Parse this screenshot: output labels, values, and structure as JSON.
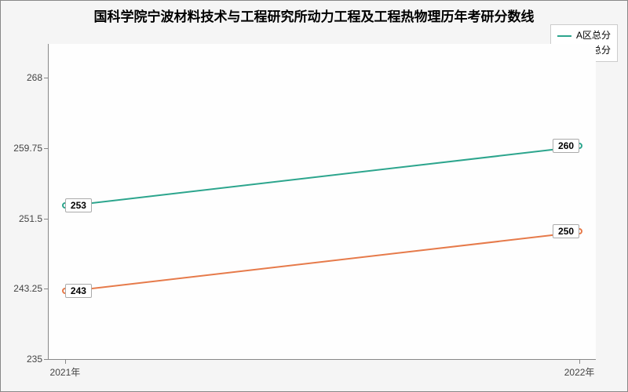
{
  "chart": {
    "type": "line",
    "title": "国科学院宁波材料技术与工程研究所动力工程及工程热物理历年考研分数线",
    "title_fontsize": 17,
    "background_color": "#f5f5f5",
    "plot_background": "#fefefe",
    "border_color": "#888888",
    "x": {
      "categories": [
        "2021年",
        "2022年"
      ],
      "positions_pct": [
        3,
        97
      ]
    },
    "y": {
      "min": 235,
      "max": 272,
      "ticks": [
        235,
        243.25,
        251.5,
        259.75,
        268
      ],
      "label_fontsize": 12,
      "label_color": "#444444"
    },
    "series": [
      {
        "name": "A区总分",
        "color": "#2ca58d",
        "line_width": 2,
        "values": [
          253,
          260
        ]
      },
      {
        "name": "B区总分",
        "color": "#e67a4a",
        "line_width": 2,
        "values": [
          243,
          250
        ]
      }
    ],
    "legend": {
      "position": "top-right",
      "items": [
        "A区总分",
        "B区总分"
      ]
    },
    "point_label": {
      "background": "#ffffff",
      "border_color": "#aaaaaa",
      "fontsize": 12
    }
  }
}
